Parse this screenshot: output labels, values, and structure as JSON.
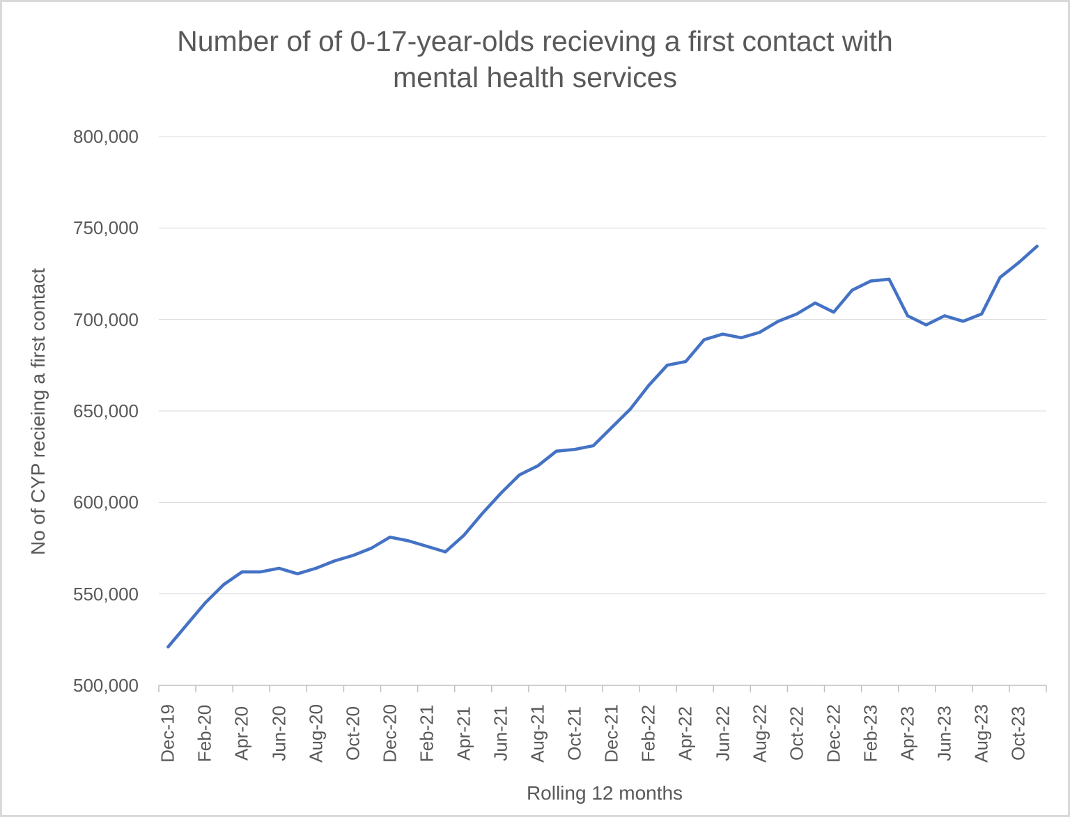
{
  "chart": {
    "title_lines": [
      "Number of of 0-17-year-olds recieving a first contact with",
      "mental health services"
    ],
    "y_axis": {
      "title": "No of CYP recieing a first contact",
      "tick_labels": [
        "800,000",
        "750,000",
        "700,000",
        "650,000",
        "600,000",
        "550,000",
        "500,000"
      ]
    },
    "x_axis": {
      "title": "Rolling 12 months",
      "tick_labels": [
        "Dec-19",
        "Feb-20",
        "Apr-20",
        "Jun-20",
        "Aug-20",
        "Oct-20",
        "Dec-20",
        "Feb-21",
        "Apr-21",
        "Jun-21",
        "Aug-21",
        "Oct-21",
        "Dec-21",
        "Feb-22",
        "Apr-22",
        "Jun-22",
        "Aug-22",
        "Oct-22",
        "Dec-22",
        "Feb-23",
        "Apr-23",
        "Jun-23",
        "Aug-23",
        "Oct-23"
      ]
    },
    "colors": {
      "line": "#4472C4",
      "gridline": "#D9D9D9",
      "axis": "#BFBFBF",
      "text": "#595959"
    }
  },
  "chart_data": {
    "type": "line",
    "title": "Number of of 0-17-year-olds recieving a first contact with mental health services",
    "xlabel": "Rolling 12 months",
    "ylabel": "No of CYP recieing a first contact",
    "x": [
      "Dec-19",
      "Jan-20",
      "Feb-20",
      "Mar-20",
      "Apr-20",
      "May-20",
      "Jun-20",
      "Jul-20",
      "Aug-20",
      "Sep-20",
      "Oct-20",
      "Nov-20",
      "Dec-20",
      "Jan-21",
      "Feb-21",
      "Mar-21",
      "Apr-21",
      "May-21",
      "Jun-21",
      "Jul-21",
      "Aug-21",
      "Sep-21",
      "Oct-21",
      "Nov-21",
      "Dec-21",
      "Jan-22",
      "Feb-22",
      "Mar-22",
      "Apr-22",
      "May-22",
      "Jun-22",
      "Jul-22",
      "Aug-22",
      "Sep-22",
      "Oct-22",
      "Nov-22",
      "Dec-22",
      "Jan-23",
      "Feb-23",
      "Mar-23",
      "Apr-23",
      "May-23",
      "Jun-23",
      "Jul-23",
      "Aug-23",
      "Sep-23",
      "Oct-23",
      "Nov-23"
    ],
    "values": [
      521000,
      533000,
      545000,
      555000,
      562000,
      562000,
      564000,
      561000,
      564000,
      568000,
      571000,
      575000,
      581000,
      579000,
      576000,
      573000,
      582000,
      594000,
      605000,
      615000,
      620000,
      628000,
      629000,
      631000,
      641000,
      651000,
      664000,
      675000,
      677000,
      689000,
      692000,
      690000,
      693000,
      699000,
      703000,
      709000,
      704000,
      716000,
      721000,
      722000,
      702000,
      697000,
      702000,
      699000,
      703000,
      723000,
      731000,
      740000
    ],
    "ylim": [
      500000,
      800000
    ],
    "ytick_interval": 50000,
    "xtick_label_every": 2,
    "grid": "horizontal",
    "legend": "none",
    "line_color": "#4472C4"
  }
}
